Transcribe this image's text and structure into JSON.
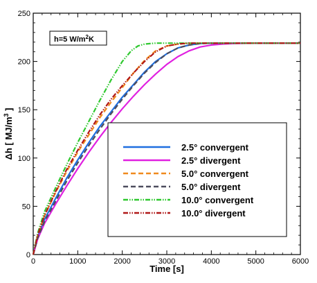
{
  "chart_data": {
    "type": "line",
    "title": "",
    "xlabel": "Time [s]",
    "ylabel_main": "Δh [ MJ/m",
    "ylabel_sup": "3",
    "ylabel_end": " ]",
    "xlim": [
      0,
      6000
    ],
    "ylim": [
      0,
      250
    ],
    "xticks": [
      0,
      1000,
      2000,
      3000,
      4000,
      5000,
      6000
    ],
    "yticks": [
      0,
      50,
      100,
      150,
      200,
      250
    ],
    "grid": false,
    "legend_position": "lower-right",
    "annotation": {
      "main": "h=5 W/m",
      "sup": "2",
      "end": "K"
    },
    "series": [
      {
        "name": "2.5° convergent",
        "color": "#1f6fe0",
        "dash": "solid",
        "x": [
          0,
          100,
          250,
          500,
          750,
          1000,
          1250,
          1500,
          1750,
          2000,
          2250,
          2500,
          2750,
          3000,
          3250,
          3500,
          3750,
          4000,
          4500,
          5000,
          5500,
          6000
        ],
        "y": [
          0,
          18,
          36,
          58,
          79,
          98,
          116,
          133,
          148,
          163,
          176,
          189,
          200,
          208,
          214,
          217,
          218.5,
          219,
          219,
          219,
          219,
          219
        ]
      },
      {
        "name": "2.5° divergent",
        "color": "#e020e0",
        "dash": "solid",
        "x": [
          0,
          100,
          250,
          500,
          750,
          1000,
          1250,
          1500,
          1750,
          2000,
          2250,
          2500,
          2750,
          3000,
          3250,
          3500,
          3750,
          4000,
          4250,
          4500,
          5000,
          5500,
          6000
        ],
        "y": [
          0,
          16,
          32,
          52,
          71,
          89,
          106,
          122,
          137,
          151,
          164,
          176,
          187,
          197,
          205,
          211,
          215,
          217,
          218,
          218.5,
          219,
          219,
          219
        ]
      },
      {
        "name": "5.0° convergent",
        "color": "#f08a1e",
        "dash": "dash",
        "x": [
          0,
          100,
          250,
          500,
          750,
          1000,
          1250,
          1500,
          1750,
          2000,
          2250,
          2500,
          2750,
          3000,
          3250,
          3500,
          4000,
          4500,
          5000,
          5500,
          6000
        ],
        "y": [
          0,
          20,
          40,
          64,
          86,
          106,
          124,
          142,
          158,
          173,
          188,
          201,
          211,
          216,
          218,
          219,
          219,
          219,
          219,
          219,
          219
        ]
      },
      {
        "name": "5.0° divergent",
        "color": "#4d4d5e",
        "dash": "dash",
        "x": [
          0,
          100,
          250,
          500,
          750,
          1000,
          1250,
          1500,
          1750,
          2000,
          2250,
          2500,
          2750,
          3000,
          3250,
          3500,
          3750,
          4000,
          4500,
          5000,
          5500,
          6000
        ],
        "y": [
          0,
          17,
          34,
          55,
          76,
          95,
          113,
          130,
          146,
          161,
          175,
          188,
          199,
          208,
          214,
          217,
          218.5,
          219,
          219,
          219,
          219,
          219
        ]
      },
      {
        "name": "10.0° convergent",
        "color": "#2ec82e",
        "dash": "dashdotdot",
        "x": [
          0,
          100,
          250,
          500,
          750,
          1000,
          1250,
          1500,
          1750,
          2000,
          2200,
          2350,
          2500,
          2750,
          3000,
          3500,
          4000,
          5000,
          6000
        ],
        "y": [
          0,
          22,
          44,
          69,
          93,
          116,
          138,
          160,
          181,
          200,
          211,
          216,
          218,
          219,
          219,
          219,
          219,
          219,
          219
        ]
      },
      {
        "name": "10.0° divergent",
        "color": "#b01818",
        "dash": "dashdotdot",
        "x": [
          0,
          100,
          250,
          500,
          750,
          1000,
          1250,
          1500,
          1750,
          2000,
          2250,
          2500,
          2750,
          3000,
          3250,
          3500,
          4000,
          4500,
          5000,
          5500,
          6000
        ],
        "y": [
          0,
          20,
          40,
          65,
          88,
          108,
          127,
          145,
          161,
          175,
          188,
          200,
          210,
          216,
          218,
          219,
          219,
          219,
          219,
          219,
          219
        ]
      }
    ]
  }
}
